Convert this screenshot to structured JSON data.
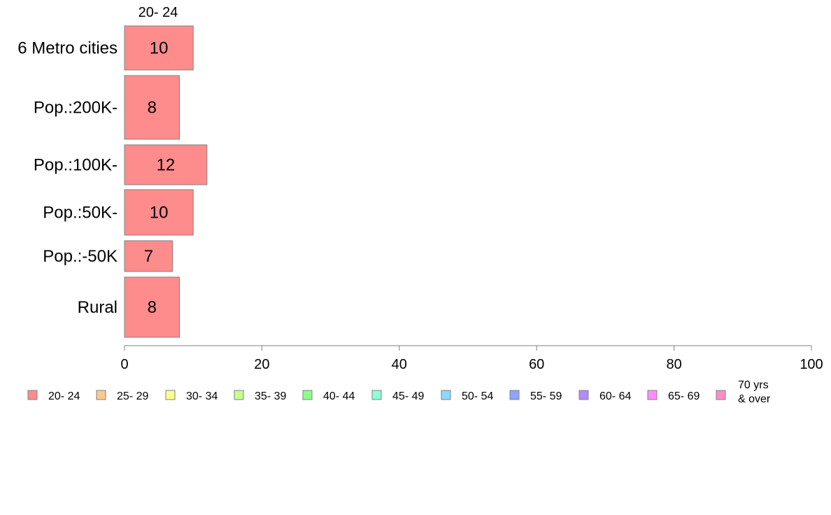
{
  "chart_data": {
    "type": "bar",
    "orientation": "horizontal",
    "top_label": "20- 24",
    "categories": [
      "6 Metro cities",
      "Pop.:200K-",
      "Pop.:100K-",
      "Pop.:50K-",
      "Pop.:-50K",
      "Rural"
    ],
    "series": [
      {
        "name": "20- 24",
        "values": [
          10,
          8,
          12,
          10,
          7,
          8
        ]
      }
    ],
    "xlim": [
      0,
      100
    ],
    "xticks": [
      0,
      20,
      40,
      60,
      80,
      100
    ],
    "grid": false,
    "legend_position": "bottom",
    "legend": [
      {
        "label": "20- 24",
        "color": "#ff8c8c"
      },
      {
        "label": "25- 29",
        "color": "#ffc98c"
      },
      {
        "label": "30- 34",
        "color": "#ffff8c"
      },
      {
        "label": "35- 39",
        "color": "#c6ff8c"
      },
      {
        "label": "40- 44",
        "color": "#8cff8c"
      },
      {
        "label": "45- 49",
        "color": "#8cffd9"
      },
      {
        "label": "50- 54",
        "color": "#8cd9ff"
      },
      {
        "label": "55- 59",
        "color": "#8ca6ff"
      },
      {
        "label": "60- 64",
        "color": "#b38cff"
      },
      {
        "label": "65- 69",
        "color": "#ff8cff"
      },
      {
        "label": "70 yrs & over",
        "color": "#ff8cc6"
      }
    ]
  }
}
